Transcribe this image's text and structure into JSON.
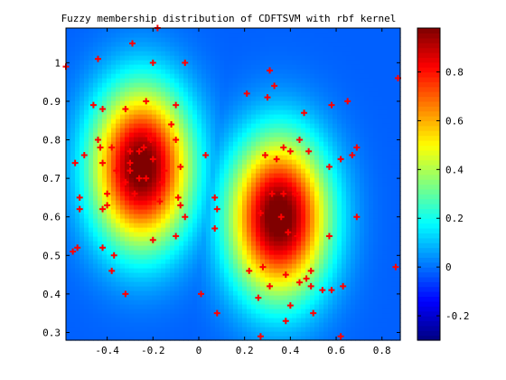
{
  "chart_data": {
    "type": "heatmap",
    "title": "Fuzzy membership distribution of CDFTSVM  with rbf kernel",
    "xlabel": "",
    "ylabel": "",
    "xlim": [
      -0.58,
      0.88
    ],
    "ylim": [
      0.28,
      1.09
    ],
    "xticks": [
      -0.4,
      -0.2,
      0,
      0.2,
      0.4,
      0.6,
      0.8
    ],
    "xtick_labels": [
      "-0.4",
      "-0.2",
      "0",
      "0.2",
      "0.4",
      "0.6",
      "0.8"
    ],
    "yticks": [
      0.3,
      0.4,
      0.5,
      0.6,
      0.7,
      0.8,
      0.9,
      1
    ],
    "ytick_labels": [
      "0.3",
      "0.4",
      "0.5",
      "0.6",
      "0.7",
      "0.8",
      "0.9",
      "1"
    ],
    "colorbar": {
      "range": [
        -0.3,
        0.98
      ],
      "ticks": [
        -0.2,
        0,
        0.2,
        0.4,
        0.6,
        0.8
      ],
      "tick_labels": [
        "-0.2",
        "0",
        "0.2",
        "0.4",
        "0.6",
        "0.8"
      ],
      "colormap": "jet"
    },
    "surface_peaks": [
      {
        "x": -0.25,
        "y": 0.73,
        "value": 0.97
      },
      {
        "x": 0.35,
        "y": 0.6,
        "value": 0.98
      }
    ],
    "points": {
      "marker": "+",
      "color": "#ff0000",
      "x": [
        -0.58,
        -0.44,
        -0.29,
        -0.18,
        -0.2,
        -0.06,
        -0.46,
        -0.42,
        -0.32,
        -0.23,
        -0.1,
        -0.12,
        -0.5,
        -0.44,
        -0.43,
        -0.3,
        -0.22,
        -0.21,
        -0.1,
        -0.38,
        -0.36,
        -0.3,
        -0.26,
        -0.24,
        -0.2,
        -0.42,
        -0.54,
        -0.3,
        -0.23,
        -0.15,
        -0.08,
        -0.52,
        -0.4,
        -0.32,
        -0.26,
        -0.16,
        -0.09,
        -0.52,
        -0.4,
        -0.28,
        -0.17,
        -0.08,
        -0.06,
        -0.42,
        -0.53,
        -0.55,
        -0.1,
        -0.2,
        -0.38,
        -0.32,
        -0.37,
        -0.42,
        0.03,
        0.21,
        0.31,
        0.33,
        0.3,
        0.4,
        0.46,
        0.58,
        0.65,
        0.29,
        0.34,
        0.37,
        0.44,
        0.48,
        0.57,
        0.62,
        0.69,
        0.67,
        0.32,
        0.37,
        0.42,
        0.07,
        0.08,
        0.27,
        0.36,
        0.39,
        0.43,
        0.57,
        0.69,
        0.07,
        0.28,
        0.38,
        0.49,
        0.22,
        0.44,
        0.31,
        0.4,
        0.47,
        0.49,
        0.54,
        0.58,
        0.63,
        0.01,
        0.26,
        0.38,
        0.5,
        0.62,
        0.08,
        0.87,
        0.86,
        0.27
      ],
      "y": [
        0.99,
        1.01,
        1.05,
        1.09,
        1.0,
        1.0,
        0.89,
        0.88,
        0.88,
        0.9,
        0.89,
        0.84,
        0.76,
        0.8,
        0.78,
        0.77,
        0.81,
        0.8,
        0.8,
        0.78,
        0.72,
        0.74,
        0.77,
        0.78,
        0.75,
        0.74,
        0.74,
        0.72,
        0.7,
        0.72,
        0.73,
        0.65,
        0.66,
        0.69,
        0.7,
        0.69,
        0.65,
        0.62,
        0.63,
        0.66,
        0.64,
        0.63,
        0.6,
        0.62,
        0.52,
        0.51,
        0.55,
        0.54,
        0.46,
        0.4,
        0.5,
        0.52,
        0.76,
        0.92,
        0.98,
        0.94,
        0.91,
        0.77,
        0.87,
        0.89,
        0.9,
        0.76,
        0.75,
        0.78,
        0.8,
        0.77,
        0.73,
        0.75,
        0.78,
        0.76,
        0.66,
        0.66,
        0.66,
        0.65,
        0.62,
        0.61,
        0.6,
        0.56,
        0.55,
        0.55,
        0.6,
        0.57,
        0.47,
        0.45,
        0.46,
        0.46,
        0.43,
        0.42,
        0.37,
        0.44,
        0.42,
        0.41,
        0.41,
        0.42,
        0.4,
        0.39,
        0.33,
        0.35,
        0.29,
        0.35,
        0.96,
        0.47,
        0.29
      ]
    }
  }
}
